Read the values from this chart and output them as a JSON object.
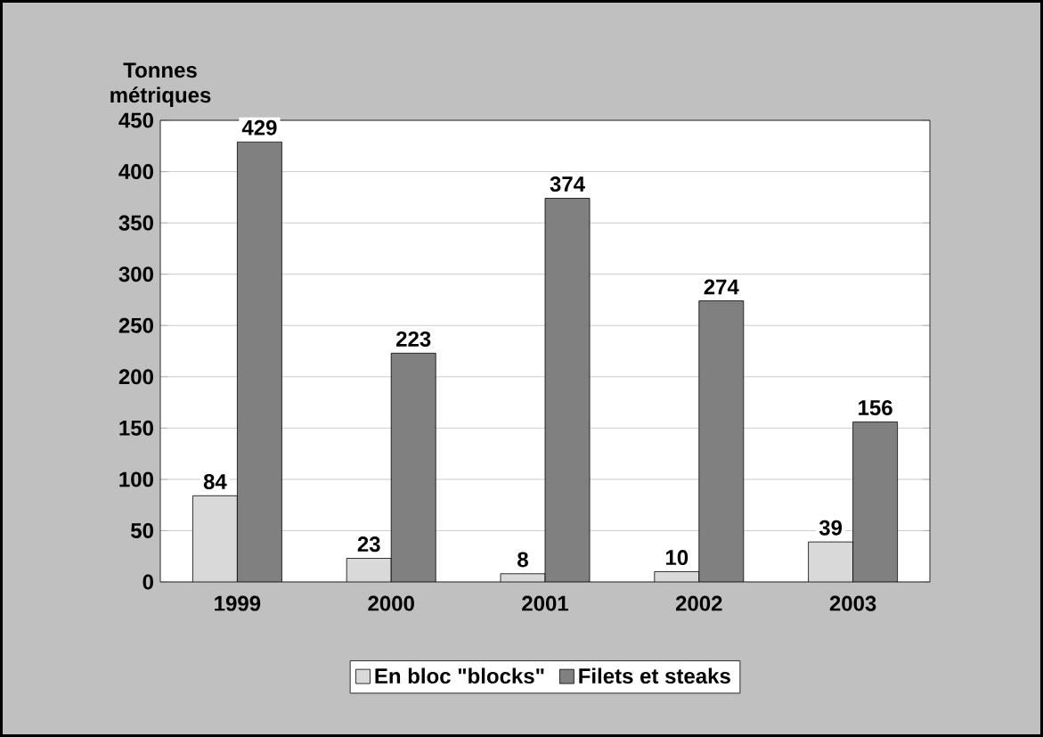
{
  "chart_data": {
    "type": "bar",
    "ylabel": "Tonnes métriques",
    "categories": [
      "1999",
      "2000",
      "2001",
      "2002",
      "2003"
    ],
    "series": [
      {
        "name": "En bloc \"blocks\"",
        "color": "#d9d9d9",
        "values": [
          84,
          23,
          8,
          10,
          39
        ]
      },
      {
        "name": "Filets et steaks",
        "color": "#808080",
        "values": [
          429,
          223,
          374,
          274,
          156
        ]
      }
    ],
    "ylim": [
      0,
      450
    ],
    "yticks": [
      0,
      50,
      100,
      150,
      200,
      250,
      300,
      350,
      400,
      450
    ],
    "grid": "y",
    "legend": "bottom",
    "data_labels": true
  }
}
